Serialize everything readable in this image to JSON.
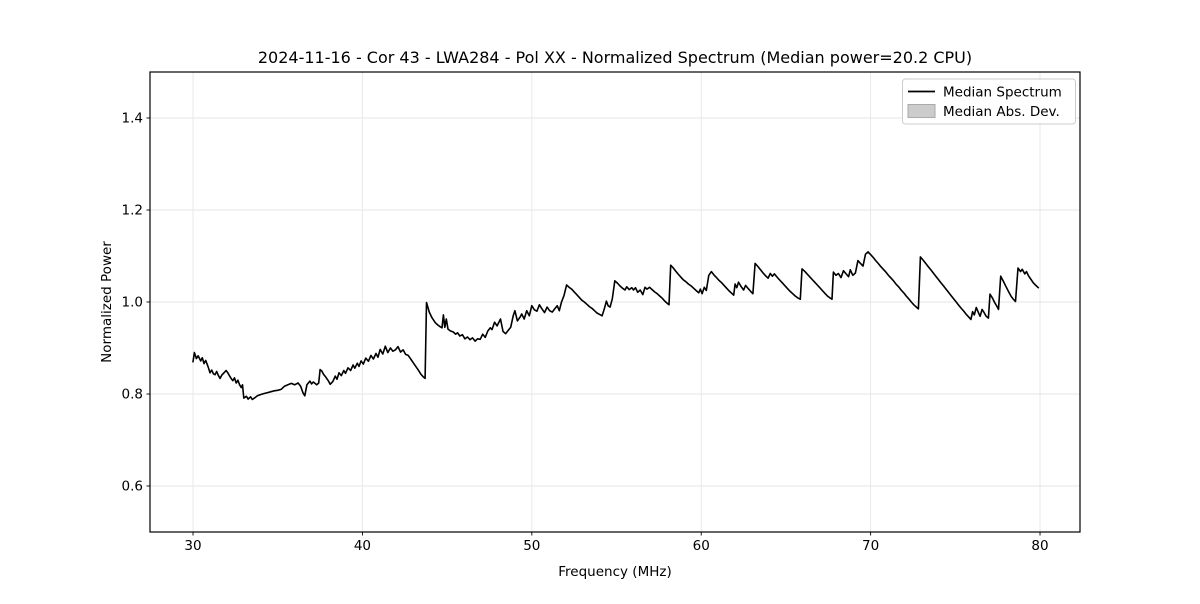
{
  "figure": {
    "title": "2024-11-16 - Cor 43 - LWA284 - Pol XX - Normalized Spectrum (Median power=20.2 CPU)",
    "xlabel": "Frequency (MHz)",
    "ylabel": "Normalized Power"
  },
  "legend": {
    "position": "upper right",
    "entries": [
      {
        "label": "Median Spectrum",
        "marker": "line",
        "color": "#000000"
      },
      {
        "label": "Median Abs. Dev.",
        "marker": "patch",
        "fill": "#cccccc",
        "edge": "#aaaaaa"
      }
    ]
  },
  "colors": {
    "line": "#000000",
    "grid": "#e6e6e6",
    "frame": "#000000",
    "background": "#ffffff",
    "legend_border": "#cccccc",
    "mad_fill": "#cccccc",
    "mad_edge": "#aaaaaa"
  },
  "chart_data": {
    "type": "line",
    "title": "2024-11-16 - Cor 43 - LWA284 - Pol XX - Normalized Spectrum (Median power=20.2 CPU)",
    "xlabel": "Frequency (MHz)",
    "ylabel": "Normalized Power",
    "xlim": [
      27.46,
      82.36
    ],
    "ylim": [
      0.5,
      1.5
    ],
    "xticks": {
      "values": [
        30,
        40,
        50,
        60,
        70,
        80
      ],
      "labels": [
        "30",
        "40",
        "50",
        "60",
        "70",
        "80"
      ]
    },
    "yticks": {
      "values": [
        0.6,
        0.8,
        1.0,
        1.2,
        1.4
      ],
      "labels": [
        "0.6",
        "0.8",
        "1.0",
        "1.2",
        "1.4"
      ]
    },
    "grid": true,
    "legend_position": "upper right",
    "series": [
      {
        "name": "Median Spectrum",
        "color": "#000000",
        "x": [
          30.0,
          30.08,
          30.2,
          30.3,
          30.45,
          30.55,
          30.65,
          30.75,
          30.9,
          31.0,
          31.1,
          31.2,
          31.3,
          31.4,
          31.5,
          31.6,
          31.7,
          31.8,
          31.95,
          32.05,
          32.15,
          32.25,
          32.35,
          32.45,
          32.55,
          32.65,
          32.75,
          32.85,
          32.92,
          33.0,
          33.15,
          33.25,
          33.4,
          33.5,
          33.65,
          33.8,
          34.0,
          34.2,
          34.4,
          34.6,
          34.8,
          35.0,
          35.2,
          35.4,
          35.6,
          35.8,
          36.0,
          36.2,
          36.35,
          36.5,
          36.6,
          36.72,
          36.9,
          37.0,
          37.1,
          37.3,
          37.42,
          37.5,
          37.6,
          37.7,
          37.85,
          38.0,
          38.1,
          38.25,
          38.4,
          38.5,
          38.62,
          38.75,
          38.9,
          39.0,
          39.15,
          39.3,
          39.45,
          39.55,
          39.7,
          39.8,
          39.92,
          40.05,
          40.2,
          40.35,
          40.5,
          40.65,
          40.8,
          40.92,
          41.05,
          41.2,
          41.35,
          41.5,
          41.65,
          41.8,
          41.95,
          42.1,
          42.25,
          42.4,
          42.55,
          42.7,
          42.85,
          43.0,
          43.15,
          43.3,
          43.45,
          43.6,
          43.7,
          43.78,
          43.95,
          44.1,
          44.3,
          44.45,
          44.6,
          44.7,
          44.78,
          44.86,
          44.95,
          45.05,
          45.2,
          45.35,
          45.5,
          45.62,
          45.75,
          45.9,
          46.05,
          46.2,
          46.35,
          46.5,
          46.65,
          46.8,
          46.95,
          47.1,
          47.25,
          47.4,
          47.55,
          47.65,
          47.8,
          47.95,
          48.15,
          48.3,
          48.45,
          48.6,
          48.75,
          48.9,
          49.0,
          49.15,
          49.3,
          49.4,
          49.55,
          49.7,
          49.85,
          50.0,
          50.15,
          50.3,
          50.45,
          50.6,
          50.75,
          50.9,
          51.05,
          51.2,
          51.35,
          51.5,
          51.62,
          51.75,
          51.9,
          52.05,
          52.2,
          52.35,
          52.5,
          52.65,
          52.8,
          52.95,
          53.1,
          53.25,
          53.4,
          53.55,
          53.7,
          53.85,
          54.0,
          54.15,
          54.28,
          54.4,
          54.5,
          54.62,
          54.75,
          54.9,
          55.05,
          55.2,
          55.35,
          55.5,
          55.6,
          55.75,
          55.9,
          56.0,
          56.12,
          56.25,
          56.4,
          56.55,
          56.68,
          56.8,
          56.95,
          57.1,
          57.25,
          57.4,
          57.55,
          57.7,
          57.85,
          58.0,
          58.1,
          58.2,
          58.35,
          58.5,
          58.65,
          58.8,
          58.95,
          59.1,
          59.25,
          59.4,
          59.55,
          59.7,
          59.85,
          59.95,
          60.05,
          60.18,
          60.3,
          60.45,
          60.6,
          60.75,
          60.9,
          61.05,
          61.2,
          61.35,
          61.5,
          61.65,
          61.8,
          61.92,
          62.0,
          62.1,
          62.2,
          62.35,
          62.5,
          62.62,
          62.78,
          62.92,
          63.05,
          63.18,
          63.35,
          63.5,
          63.65,
          63.8,
          63.95,
          64.08,
          64.2,
          64.32,
          64.5,
          64.65,
          64.8,
          64.95,
          65.1,
          65.25,
          65.4,
          65.55,
          65.7,
          65.85,
          65.95,
          66.1,
          66.25,
          66.4,
          66.55,
          66.7,
          66.85,
          67.0,
          67.15,
          67.3,
          67.45,
          67.6,
          67.72,
          67.8,
          67.95,
          68.1,
          68.25,
          68.4,
          68.55,
          68.7,
          68.8,
          68.95,
          69.1,
          69.25,
          69.4,
          69.55,
          69.7,
          69.85,
          70.0,
          70.15,
          70.3,
          70.45,
          70.6,
          70.75,
          70.9,
          71.05,
          71.2,
          71.35,
          71.5,
          71.65,
          71.8,
          71.95,
          72.1,
          72.25,
          72.4,
          72.55,
          72.7,
          72.82,
          72.94,
          73.1,
          73.25,
          73.4,
          73.55,
          73.7,
          73.85,
          74.0,
          74.15,
          74.3,
          74.45,
          74.6,
          74.75,
          74.9,
          75.05,
          75.2,
          75.35,
          75.5,
          75.65,
          75.8,
          75.92,
          76.02,
          76.12,
          76.24,
          76.36,
          76.46,
          76.58,
          76.7,
          76.82,
          76.95,
          77.05,
          77.2,
          77.32,
          77.45,
          77.55,
          77.68,
          77.85,
          78.0,
          78.15,
          78.3,
          78.45,
          78.55,
          78.7,
          78.85,
          78.95,
          79.1,
          79.2,
          79.32,
          79.45,
          79.6,
          79.75,
          79.9
        ],
        "y": [
          0.87,
          0.89,
          0.877,
          0.883,
          0.872,
          0.879,
          0.866,
          0.873,
          0.858,
          0.846,
          0.852,
          0.844,
          0.842,
          0.849,
          0.84,
          0.834,
          0.841,
          0.845,
          0.851,
          0.846,
          0.84,
          0.834,
          0.829,
          0.835,
          0.824,
          0.83,
          0.82,
          0.814,
          0.82,
          0.791,
          0.795,
          0.789,
          0.794,
          0.788,
          0.792,
          0.796,
          0.799,
          0.801,
          0.803,
          0.805,
          0.807,
          0.808,
          0.81,
          0.817,
          0.82,
          0.823,
          0.82,
          0.824,
          0.817,
          0.802,
          0.796,
          0.82,
          0.828,
          0.822,
          0.826,
          0.82,
          0.824,
          0.853,
          0.85,
          0.843,
          0.836,
          0.828,
          0.821,
          0.827,
          0.839,
          0.832,
          0.846,
          0.84,
          0.851,
          0.845,
          0.857,
          0.851,
          0.863,
          0.856,
          0.867,
          0.86,
          0.872,
          0.865,
          0.878,
          0.871,
          0.884,
          0.876,
          0.888,
          0.88,
          0.897,
          0.887,
          0.904,
          0.89,
          0.9,
          0.893,
          0.896,
          0.903,
          0.891,
          0.896,
          0.886,
          0.884,
          0.876,
          0.868,
          0.86,
          0.852,
          0.843,
          0.837,
          0.834,
          0.999,
          0.978,
          0.966,
          0.955,
          0.95,
          0.946,
          0.944,
          0.972,
          0.945,
          0.963,
          0.941,
          0.937,
          0.935,
          0.93,
          0.933,
          0.926,
          0.929,
          0.92,
          0.924,
          0.918,
          0.922,
          0.915,
          0.92,
          0.919,
          0.93,
          0.923,
          0.937,
          0.944,
          0.94,
          0.956,
          0.948,
          0.963,
          0.936,
          0.931,
          0.938,
          0.945,
          0.97,
          0.981,
          0.959,
          0.967,
          0.974,
          0.963,
          0.981,
          0.97,
          0.992,
          0.983,
          0.98,
          0.994,
          0.985,
          0.977,
          0.989,
          0.981,
          0.978,
          0.985,
          0.992,
          0.981,
          1.0,
          1.014,
          1.037,
          1.032,
          1.028,
          1.022,
          1.016,
          1.01,
          1.004,
          1.0,
          0.995,
          0.99,
          0.986,
          0.981,
          0.976,
          0.973,
          0.97,
          0.985,
          1.002,
          0.992,
          0.989,
          1.007,
          1.046,
          1.041,
          1.035,
          1.03,
          1.026,
          1.033,
          1.027,
          1.031,
          1.026,
          1.031,
          1.021,
          1.026,
          1.016,
          1.032,
          1.028,
          1.032,
          1.027,
          1.022,
          1.018,
          1.013,
          1.008,
          1.002,
          0.997,
          0.994,
          1.08,
          1.074,
          1.067,
          1.06,
          1.054,
          1.048,
          1.044,
          1.039,
          1.035,
          1.03,
          1.025,
          1.02,
          1.028,
          1.018,
          1.032,
          1.025,
          1.058,
          1.066,
          1.059,
          1.053,
          1.047,
          1.042,
          1.036,
          1.03,
          1.024,
          1.019,
          1.015,
          1.039,
          1.031,
          1.043,
          1.034,
          1.026,
          1.036,
          1.029,
          1.023,
          1.018,
          1.084,
          1.077,
          1.07,
          1.063,
          1.057,
          1.052,
          1.062,
          1.056,
          1.061,
          1.053,
          1.047,
          1.041,
          1.035,
          1.029,
          1.023,
          1.018,
          1.013,
          1.009,
          1.006,
          1.072,
          1.067,
          1.061,
          1.055,
          1.049,
          1.043,
          1.037,
          1.031,
          1.025,
          1.019,
          1.013,
          1.009,
          1.006,
          1.065,
          1.058,
          1.062,
          1.053,
          1.068,
          1.061,
          1.055,
          1.07,
          1.058,
          1.063,
          1.09,
          1.084,
          1.078,
          1.104,
          1.109,
          1.103,
          1.097,
          1.09,
          1.084,
          1.077,
          1.071,
          1.065,
          1.058,
          1.052,
          1.046,
          1.039,
          1.033,
          1.026,
          1.02,
          1.013,
          1.007,
          1.0,
          0.994,
          0.989,
          0.985,
          1.098,
          1.091,
          1.084,
          1.077,
          1.07,
          1.063,
          1.056,
          1.049,
          1.042,
          1.035,
          1.028,
          1.021,
          1.014,
          1.007,
          1.0,
          0.993,
          0.986,
          0.98,
          0.973,
          0.967,
          0.962,
          0.979,
          0.972,
          0.988,
          0.977,
          0.969,
          0.984,
          0.977,
          0.969,
          0.965,
          1.017,
          1.008,
          0.999,
          0.991,
          0.984,
          1.056,
          1.044,
          1.033,
          1.022,
          1.012,
          1.005,
          1.001,
          1.074,
          1.066,
          1.071,
          1.061,
          1.066,
          1.057,
          1.05,
          1.042,
          1.036,
          1.031
        ]
      }
    ]
  }
}
